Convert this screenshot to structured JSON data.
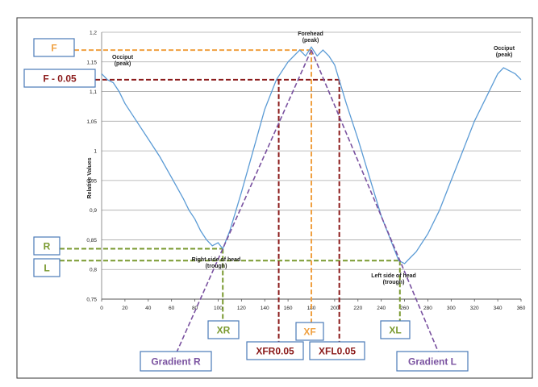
{
  "chart_data": {
    "type": "line",
    "title": "",
    "xlabel": "",
    "ylabel": "Relative Values",
    "xlim": [
      0,
      360
    ],
    "ylim": [
      0.75,
      1.2
    ],
    "x_ticks": [
      0,
      20,
      40,
      60,
      80,
      100,
      120,
      140,
      160,
      180,
      200,
      220,
      240,
      260,
      280,
      300,
      320,
      340,
      360
    ],
    "y_ticks": [
      "0,75",
      "0,8",
      "0,85",
      "0,9",
      "0,95",
      "1",
      "1,05",
      "1,1",
      "1,15",
      "1,2"
    ],
    "grid": "horizontal",
    "series": [
      {
        "name": "",
        "color": "#5b9bd5",
        "x": [
          0,
          5,
          10,
          15,
          20,
          30,
          40,
          50,
          60,
          70,
          75,
          80,
          85,
          90,
          95,
          100,
          104,
          110,
          120,
          130,
          140,
          150,
          160,
          170,
          175,
          180,
          185,
          190,
          195,
          200,
          210,
          220,
          230,
          240,
          250,
          255,
          260,
          265,
          270,
          280,
          290,
          300,
          310,
          320,
          330,
          340,
          345,
          350,
          355,
          360
        ],
        "y": [
          1.13,
          1.12,
          1.115,
          1.1,
          1.08,
          1.05,
          1.02,
          0.99,
          0.955,
          0.92,
          0.9,
          0.885,
          0.865,
          0.85,
          0.84,
          0.845,
          0.835,
          0.865,
          0.93,
          1.0,
          1.07,
          1.12,
          1.15,
          1.17,
          1.16,
          1.175,
          1.16,
          1.17,
          1.16,
          1.145,
          1.08,
          1.02,
          0.955,
          0.89,
          0.84,
          0.815,
          0.81,
          0.82,
          0.83,
          0.86,
          0.9,
          0.95,
          1.0,
          1.05,
          1.09,
          1.13,
          1.14,
          1.135,
          1.13,
          1.12
        ]
      }
    ],
    "annotations": {
      "occiput_left": [
        "Occiput",
        "(peak)"
      ],
      "forehead": [
        "Forehead",
        "(peak)"
      ],
      "occiput_right": [
        "Occiput",
        "(peak)"
      ],
      "trough_right": [
        "Right side of head",
        "(trough)"
      ],
      "trough_left": [
        "Left side of head",
        "(trough)"
      ]
    },
    "reference_levels": {
      "F": 1.17,
      "F_minus_005": 1.12,
      "R": 0.835,
      "L": 0.815,
      "XR": 104,
      "XF": 180,
      "XL": 256,
      "XFR005": 152,
      "XFL005": 204
    },
    "gradient_lines": {
      "R": {
        "from": [
          180,
          1.17
        ],
        "to": [
          104,
          0.835
        ]
      },
      "L": {
        "from": [
          180,
          1.17
        ],
        "to": [
          256,
          0.815
        ]
      }
    }
  },
  "labels": {
    "F": "F",
    "F_minus": "F - 0.05",
    "R": "R",
    "L": "L",
    "XR": "XR",
    "XF": "XF",
    "XL": "XL",
    "XFR": "XFR0.05",
    "XFL": "XFL0.05",
    "gradR": "Gradient R",
    "gradL": "Gradient L"
  },
  "colors": {
    "orange": "#f0a040",
    "darkred": "#8b1a1a",
    "green": "#7a9a30",
    "purple": "#7a52a0",
    "box_border": "#4a7ab8",
    "line": "#5b9bd5"
  }
}
